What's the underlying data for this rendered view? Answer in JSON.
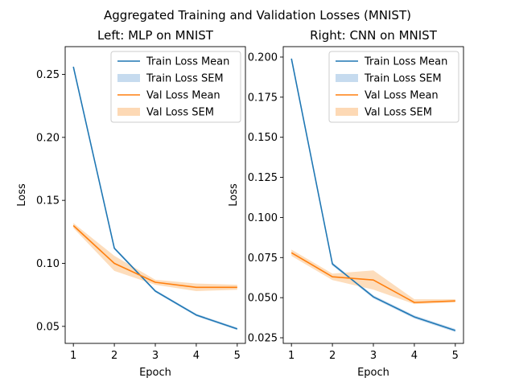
{
  "figure": {
    "suptitle": "Aggregated Training and Validation Losses (MNIST)"
  },
  "colors": {
    "train": "#1f77b4",
    "train_sem": "#c6dbef",
    "val": "#ff7f0e",
    "val_sem": "#fdd9b5"
  },
  "chart_data": [
    {
      "type": "line",
      "title": "Left: MLP on MNIST",
      "xlabel": "Epoch",
      "ylabel": "Loss",
      "x": [
        1,
        2,
        3,
        4,
        5
      ],
      "xlim": [
        0.8,
        5.2
      ],
      "ylim": [
        0.0365,
        0.272
      ],
      "xticks": [
        1,
        2,
        3,
        4,
        5
      ],
      "yticks": [
        0.05,
        0.1,
        0.15,
        0.2,
        0.25
      ],
      "ytick_labels": [
        "0.05",
        "0.10",
        "0.15",
        "0.20",
        "0.25"
      ],
      "grid": false,
      "legend_position": "top-right",
      "series": [
        {
          "name": "Train Loss Mean",
          "kind": "mean",
          "color_key": "train",
          "values": [
            0.256,
            0.112,
            0.078,
            0.059,
            0.048
          ]
        },
        {
          "name": "Train Loss SEM",
          "kind": "sem",
          "color_key": "train_sem",
          "lower": [
            0.255,
            0.111,
            0.077,
            0.058,
            0.047
          ],
          "upper": [
            0.257,
            0.113,
            0.079,
            0.06,
            0.049
          ]
        },
        {
          "name": "Val Loss Mean",
          "kind": "mean",
          "color_key": "val",
          "values": [
            0.13,
            0.1,
            0.085,
            0.081,
            0.081
          ]
        },
        {
          "name": "Val Loss SEM",
          "kind": "sem",
          "color_key": "val_sem",
          "lower": [
            0.128,
            0.094,
            0.083,
            0.078,
            0.079
          ],
          "upper": [
            0.132,
            0.106,
            0.087,
            0.084,
            0.083
          ]
        }
      ]
    },
    {
      "type": "line",
      "title": "Right: CNN on MNIST",
      "xlabel": "Epoch",
      "ylabel": "Loss",
      "x": [
        1,
        2,
        3,
        4,
        5
      ],
      "xlim": [
        0.8,
        5.2
      ],
      "ylim": [
        0.0215,
        0.2065
      ],
      "xticks": [
        1,
        2,
        3,
        4,
        5
      ],
      "yticks": [
        0.025,
        0.05,
        0.075,
        0.1,
        0.125,
        0.15,
        0.175,
        0.2
      ],
      "ytick_labels": [
        "0.025",
        "0.050",
        "0.075",
        "0.100",
        "0.125",
        "0.150",
        "0.175",
        "0.200"
      ],
      "grid": false,
      "legend_position": "top-right",
      "series": [
        {
          "name": "Train Loss Mean",
          "kind": "mean",
          "color_key": "train",
          "values": [
            0.199,
            0.071,
            0.0505,
            0.038,
            0.0295
          ]
        },
        {
          "name": "Train Loss SEM",
          "kind": "sem",
          "color_key": "train_sem",
          "lower": [
            0.198,
            0.07,
            0.0495,
            0.037,
            0.0285
          ],
          "upper": [
            0.2,
            0.072,
            0.0515,
            0.039,
            0.0305
          ]
        },
        {
          "name": "Val Loss Mean",
          "kind": "mean",
          "color_key": "val",
          "values": [
            0.078,
            0.063,
            0.061,
            0.047,
            0.048
          ]
        },
        {
          "name": "Val Loss SEM",
          "kind": "sem",
          "color_key": "val_sem",
          "lower": [
            0.076,
            0.061,
            0.055,
            0.046,
            0.047
          ],
          "upper": [
            0.08,
            0.065,
            0.067,
            0.049,
            0.049
          ]
        }
      ]
    }
  ]
}
